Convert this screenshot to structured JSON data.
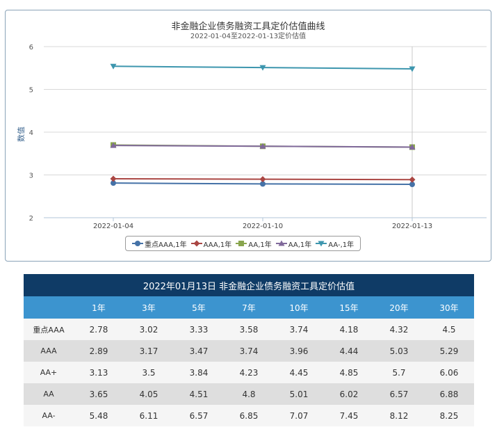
{
  "chart_data": {
    "type": "line",
    "title": "非金融企业债务融资工具定价估值曲线",
    "subtitle": "2022-01-04至2022-01-13定价估值",
    "xlabel": "",
    "ylabel": "数值",
    "categories": [
      "2022-01-04",
      "2022-01-10",
      "2022-01-13"
    ],
    "ylim": [
      2,
      6
    ],
    "yticks": [
      2,
      3,
      4,
      5,
      6
    ],
    "grid": true,
    "legend_position": "bottom",
    "series": [
      {
        "name": "重点AAA,1年",
        "values": [
          2.81,
          2.79,
          2.78
        ],
        "color": "#4572a7",
        "marker": "circle"
      },
      {
        "name": "AAA,1年",
        "values": [
          2.91,
          2.9,
          2.89
        ],
        "color": "#aa4643",
        "marker": "diamond"
      },
      {
        "name": "AA,1年",
        "values": [
          3.7,
          3.67,
          3.65
        ],
        "color": "#89a54e",
        "marker": "square"
      },
      {
        "name": "AA,1年",
        "values": [
          3.69,
          3.67,
          3.65
        ],
        "color": "#80699b",
        "marker": "triangle"
      },
      {
        "name": "AA-,1年",
        "values": [
          5.54,
          5.51,
          5.48
        ],
        "color": "#3d96ae",
        "marker": "triangle-down"
      }
    ]
  },
  "table": {
    "title": "2022年01月13日 非金融企业债务融资工具定价估值",
    "headers": [
      "",
      "1年",
      "3年",
      "5年",
      "7年",
      "10年",
      "15年",
      "20年",
      "30年"
    ],
    "rows": [
      {
        "label": "重点AAA",
        "values": [
          "2.78",
          "3.02",
          "3.33",
          "3.58",
          "3.74",
          "4.18",
          "4.32",
          "4.5"
        ]
      },
      {
        "label": "AAA",
        "values": [
          "2.89",
          "3.17",
          "3.47",
          "3.74",
          "3.96",
          "4.44",
          "5.03",
          "5.29"
        ]
      },
      {
        "label": "AA+",
        "values": [
          "3.13",
          "3.5",
          "3.84",
          "4.23",
          "4.45",
          "4.85",
          "5.7",
          "6.06"
        ]
      },
      {
        "label": "AA",
        "values": [
          "3.65",
          "4.05",
          "4.51",
          "4.8",
          "5.01",
          "6.02",
          "6.57",
          "6.88"
        ]
      },
      {
        "label": "AA-",
        "values": [
          "5.48",
          "6.11",
          "6.57",
          "6.85",
          "7.07",
          "7.45",
          "8.12",
          "8.25"
        ]
      }
    ]
  }
}
